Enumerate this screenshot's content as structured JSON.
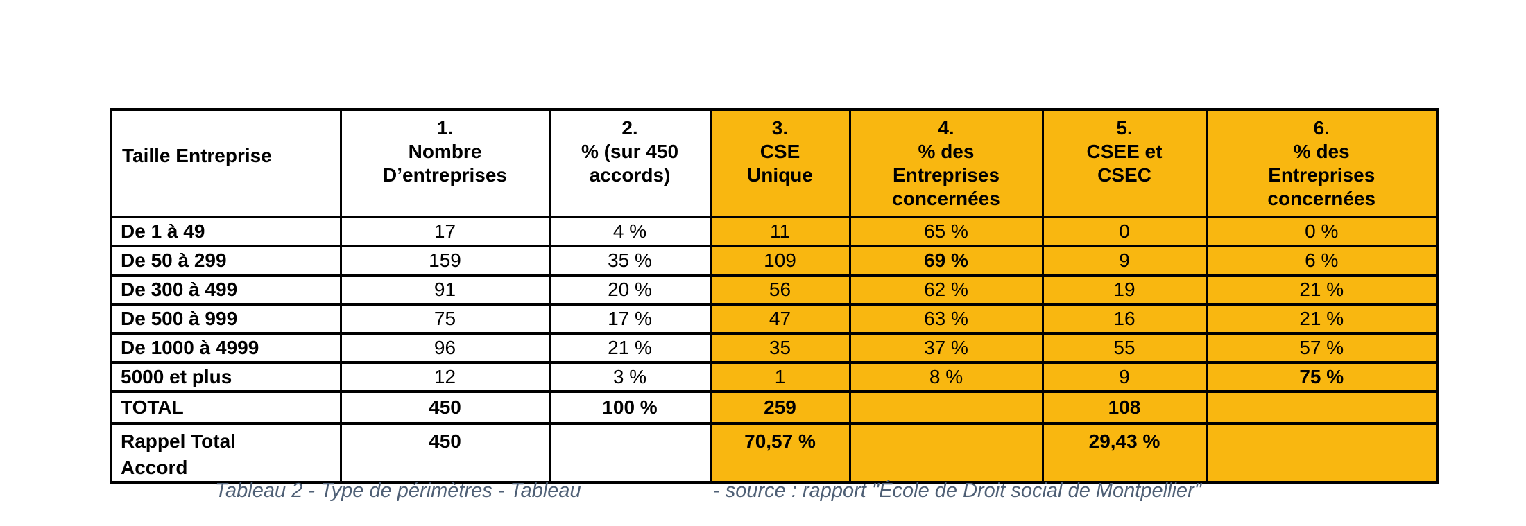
{
  "colors": {
    "cell_highlight": "#F9B710",
    "table_border": "#000000",
    "caption_text": "#4E5F75",
    "plain_cell": "#FFFFFF",
    "text": "#000000"
  },
  "table": {
    "header_cells": [
      {
        "lines": [
          "Taille Entreprise"
        ],
        "highlight": false
      },
      {
        "lines": [
          "1.",
          "Nombre",
          "D’entreprises"
        ],
        "highlight": false
      },
      {
        "lines": [
          "2.",
          "% (sur 450",
          "accords)"
        ],
        "highlight": false
      },
      {
        "lines": [
          "3.",
          "CSE",
          "Unique"
        ],
        "highlight": true
      },
      {
        "lines": [
          "4.",
          "% des",
          "Entreprises",
          "concernées"
        ],
        "highlight": true
      },
      {
        "lines": [
          "5.",
          "CSEE et",
          "CSEC"
        ],
        "highlight": true
      },
      {
        "lines": [
          "6.",
          "% des",
          "Entreprises",
          "concernées"
        ],
        "highlight": true
      }
    ],
    "rows": [
      {
        "label": "De 1 à 49",
        "cells": [
          {
            "text": "17"
          },
          {
            "text": "4 %"
          },
          {
            "text": "11"
          },
          {
            "text": "65 %"
          },
          {
            "text": "0"
          },
          {
            "text": "0 %"
          }
        ]
      },
      {
        "label": "De 50 à 299",
        "cells": [
          {
            "text": "159"
          },
          {
            "text": "35 %"
          },
          {
            "text": "109"
          },
          {
            "text": "69 %",
            "bold": true
          },
          {
            "text": "9"
          },
          {
            "text": "6 %"
          }
        ]
      },
      {
        "label": "De 300 à 499",
        "cells": [
          {
            "text": "91"
          },
          {
            "text": "20 %"
          },
          {
            "text": "56"
          },
          {
            "text": "62 %"
          },
          {
            "text": "19"
          },
          {
            "text": "21 %"
          }
        ]
      },
      {
        "label": "De 500 à 999",
        "cells": [
          {
            "text": "75"
          },
          {
            "text": "17 %"
          },
          {
            "text": "47"
          },
          {
            "text": "63 %"
          },
          {
            "text": "16"
          },
          {
            "text": "21 %"
          }
        ]
      },
      {
        "label": "De 1000 à 4999",
        "cells": [
          {
            "text": "96"
          },
          {
            "text": "21 %"
          },
          {
            "text": "35"
          },
          {
            "text": "37 %"
          },
          {
            "text": "55"
          },
          {
            "text": "57 %"
          }
        ]
      },
      {
        "label": "5000 et plus",
        "cells": [
          {
            "text": "12"
          },
          {
            "text": "3 %"
          },
          {
            "text": "1"
          },
          {
            "text": "8 %"
          },
          {
            "text": "9"
          },
          {
            "text": "75 %",
            "bold": true
          }
        ]
      },
      {
        "label": "TOTAL",
        "cells": [
          {
            "text": "450",
            "bold": true
          },
          {
            "text": "100 %",
            "bold": true
          },
          {
            "text": "259",
            "bold": true
          },
          {
            "text": ""
          },
          {
            "text": "108",
            "bold": true
          },
          {
            "text": ""
          }
        ]
      },
      {
        "label": "Rappel Total\nAccord",
        "cells": [
          {
            "text": "450",
            "bold": true
          },
          {
            "text": ""
          },
          {
            "text": "70,57 %",
            "bold": true
          },
          {
            "text": ""
          },
          {
            "text": "29,43 %",
            "bold": true
          },
          {
            "text": ""
          }
        ]
      }
    ]
  },
  "caption": {
    "title": "Tableau 2 - Type de périmètres - Tableau",
    "source": "- source : rapport \"École de Droit social de Montpellier\""
  }
}
